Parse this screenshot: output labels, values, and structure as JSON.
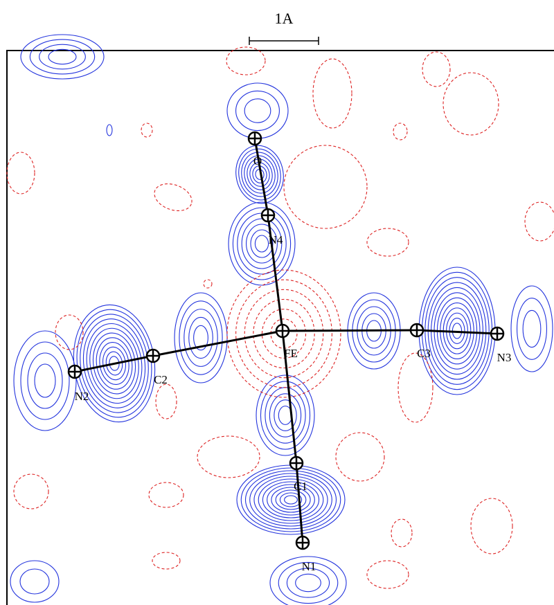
{
  "scale_bar": {
    "label": "1A"
  },
  "atoms": [
    {
      "label": "O"
    },
    {
      "label": "N4"
    },
    {
      "label": "FE"
    },
    {
      "label": "C3"
    },
    {
      "label": "N3"
    },
    {
      "label": "C2"
    },
    {
      "label": "N2"
    },
    {
      "label": "C1"
    },
    {
      "label": "N1"
    }
  ]
}
